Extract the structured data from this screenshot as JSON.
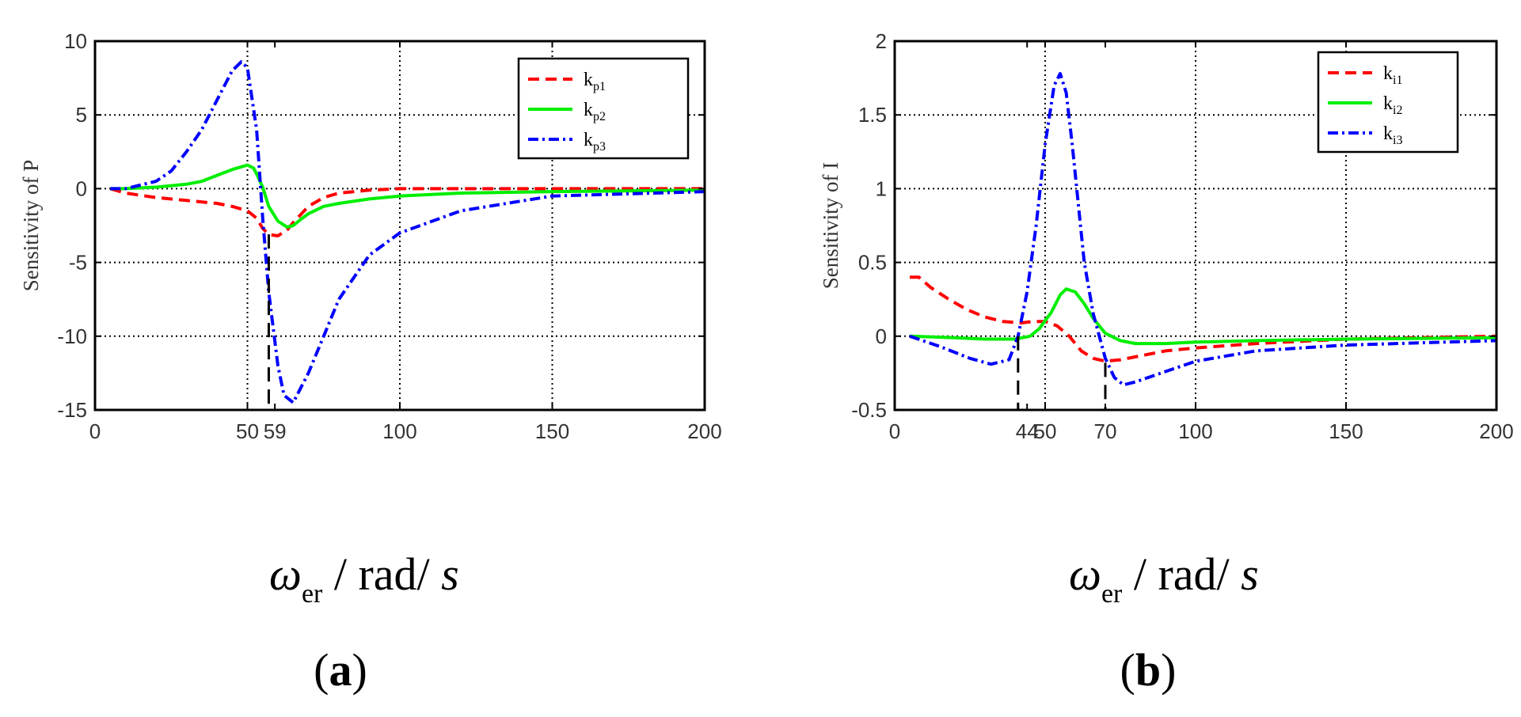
{
  "chart_data": [
    {
      "id": "a",
      "type": "line",
      "panel_label": "a",
      "ylabel": "Sensitivity of P",
      "xlabel": {
        "symbol": "ω",
        "subscript": "er",
        "unit": " / rad/ ",
        "unit_var": "s"
      },
      "xlim": [
        0,
        200
      ],
      "ylim": [
        -15,
        10
      ],
      "xticks": [
        0,
        50,
        59,
        100,
        150,
        200
      ],
      "xtick_labels": [
        "0",
        "50",
        "59",
        "100",
        "150",
        "200"
      ],
      "yticks": [
        10,
        5,
        0,
        -5,
        -10,
        -15
      ],
      "ytick_labels": [
        "10",
        "5",
        "0",
        "-5",
        "-10",
        "-15"
      ],
      "grid_x": [
        50,
        100,
        150
      ],
      "grid_y": [
        5,
        0,
        -5,
        -10
      ],
      "marker_lines": [
        {
          "x": 57,
          "y_from": -3.1,
          "y_to": -15
        }
      ],
      "legend_position": "top-right",
      "series": [
        {
          "name": "k",
          "sub": "p1",
          "color": "#ff0000",
          "style": "dashed",
          "x": [
            5,
            10,
            20,
            30,
            40,
            45,
            50,
            53,
            55,
            57,
            60,
            63,
            65,
            70,
            75,
            80,
            90,
            100,
            110,
            120,
            140,
            160,
            200
          ],
          "y": [
            0,
            -0.3,
            -0.6,
            -0.8,
            -1.0,
            -1.2,
            -1.5,
            -2.0,
            -2.7,
            -3.1,
            -3.2,
            -2.8,
            -2.3,
            -1.2,
            -0.6,
            -0.3,
            -0.1,
            0,
            0,
            0,
            0,
            0,
            0
          ]
        },
        {
          "name": "k",
          "sub": "p2",
          "color": "#00ee00",
          "style": "solid",
          "x": [
            5,
            10,
            20,
            30,
            35,
            40,
            45,
            50,
            52,
            53,
            55,
            57,
            60,
            63,
            65,
            68,
            70,
            75,
            80,
            90,
            100,
            120,
            150,
            200
          ],
          "y": [
            0,
            0,
            0.1,
            0.3,
            0.5,
            0.9,
            1.3,
            1.6,
            1.4,
            1.0,
            0.1,
            -1.2,
            -2.2,
            -2.6,
            -2.5,
            -2.0,
            -1.7,
            -1.2,
            -1.0,
            -0.7,
            -0.5,
            -0.3,
            -0.2,
            -0.1
          ]
        },
        {
          "name": "k",
          "sub": "p3",
          "color": "#0000ff",
          "style": "dashdot",
          "x": [
            5,
            10,
            20,
            25,
            30,
            35,
            40,
            45,
            48,
            50,
            53,
            55,
            57,
            60,
            62,
            65,
            70,
            75,
            80,
            90,
            100,
            120,
            150,
            200
          ],
          "y": [
            0,
            0,
            0.5,
            1.2,
            2.5,
            4.0,
            6.0,
            8.0,
            8.6,
            8.2,
            4.0,
            -2.0,
            -7.0,
            -12.0,
            -14.0,
            -14.5,
            -12.5,
            -10.0,
            -7.5,
            -4.5,
            -3.0,
            -1.5,
            -0.5,
            -0.2
          ]
        }
      ]
    },
    {
      "id": "b",
      "type": "line",
      "panel_label": "b",
      "ylabel": "Sensitivity of I",
      "xlabel": {
        "symbol": "ω",
        "subscript": "er",
        "unit": " / rad/ ",
        "unit_var": "s"
      },
      "xlim": [
        0,
        200
      ],
      "ylim": [
        -0.5,
        2
      ],
      "xticks": [
        0,
        44,
        50,
        70,
        100,
        150,
        200
      ],
      "xtick_labels": [
        "0",
        "44",
        "50",
        "70",
        "100",
        "150",
        "200"
      ],
      "yticks": [
        2,
        1.5,
        1,
        0.5,
        0,
        -0.5
      ],
      "ytick_labels": [
        "2",
        "1.5",
        "1",
        "0.5",
        "0",
        "-0.5"
      ],
      "grid_x": [
        50,
        100,
        150
      ],
      "grid_y": [
        1.5,
        1,
        0.5,
        0
      ],
      "marker_lines": [
        {
          "x": 41,
          "y_from": 0,
          "y_to": -0.5
        },
        {
          "x": 70,
          "y_from": -0.18,
          "y_to": -0.5
        }
      ],
      "legend_position": "top-right",
      "series": [
        {
          "name": "k",
          "sub": "i1",
          "color": "#ff0000",
          "style": "dashed",
          "x": [
            5,
            8,
            12,
            18,
            24,
            30,
            36,
            42,
            46,
            50,
            54,
            58,
            62,
            66,
            70,
            75,
            80,
            90,
            100,
            120,
            150,
            200
          ],
          "y": [
            0.4,
            0.4,
            0.33,
            0.25,
            0.18,
            0.13,
            0.1,
            0.09,
            0.1,
            0.1,
            0.07,
            0.0,
            -0.1,
            -0.15,
            -0.17,
            -0.16,
            -0.14,
            -0.1,
            -0.08,
            -0.05,
            -0.02,
            0
          ]
        },
        {
          "name": "k",
          "sub": "i2",
          "color": "#00ee00",
          "style": "solid",
          "x": [
            5,
            20,
            30,
            40,
            45,
            48,
            52,
            55,
            57,
            60,
            63,
            66,
            70,
            75,
            80,
            90,
            100,
            120,
            150,
            200
          ],
          "y": [
            0,
            -0.01,
            -0.02,
            -0.02,
            0.0,
            0.05,
            0.16,
            0.28,
            0.32,
            0.3,
            0.22,
            0.12,
            0.02,
            -0.03,
            -0.05,
            -0.05,
            -0.04,
            -0.03,
            -0.02,
            -0.01
          ]
        },
        {
          "name": "k",
          "sub": "i3",
          "color": "#0000ff",
          "style": "dashdot",
          "x": [
            5,
            15,
            25,
            32,
            38,
            41,
            44,
            47,
            50,
            53,
            55,
            57,
            59,
            61,
            63,
            66,
            70,
            73,
            76,
            80,
            90,
            100,
            120,
            150,
            200
          ],
          "y": [
            0,
            -0.07,
            -0.15,
            -0.19,
            -0.16,
            0.0,
            0.3,
            0.75,
            1.3,
            1.7,
            1.78,
            1.65,
            1.3,
            0.9,
            0.5,
            0.15,
            -0.15,
            -0.28,
            -0.33,
            -0.31,
            -0.24,
            -0.17,
            -0.1,
            -0.06,
            -0.03
          ]
        }
      ]
    }
  ]
}
